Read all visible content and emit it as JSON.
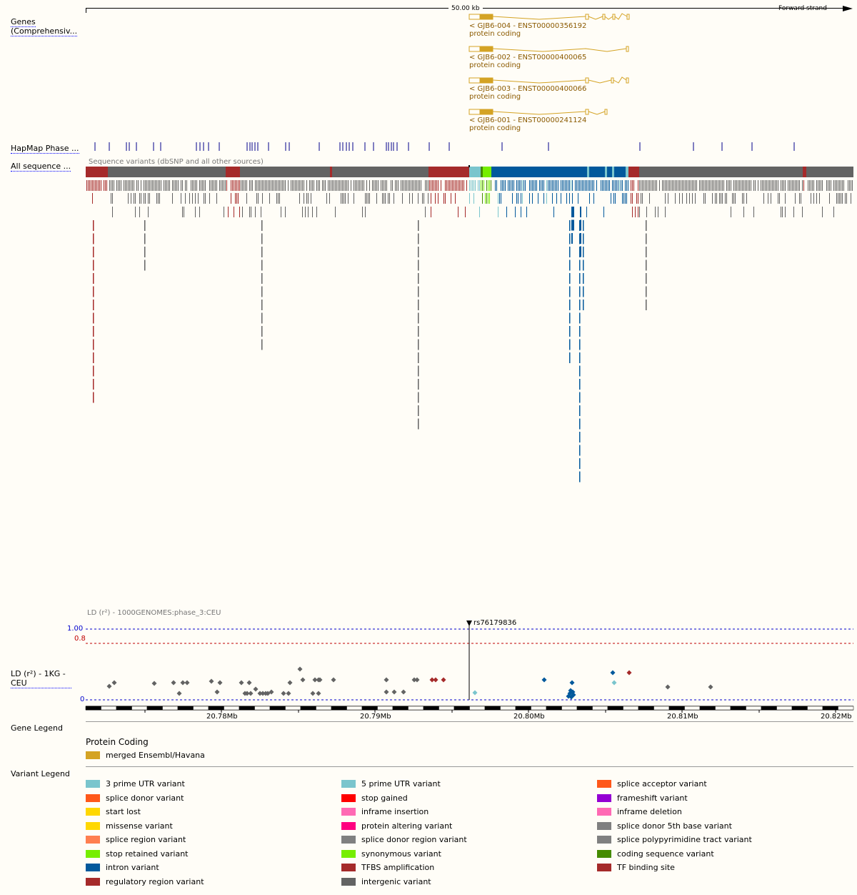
{
  "scale_bar": {
    "length_label": "50.00 kb",
    "strand_label": "Forward strand"
  },
  "tracks": {
    "genes_label": "Genes (Comprehensiv...",
    "hapmap_label": "HapMap Phase ...",
    "seqvar_label": "All sequence ...",
    "seqvar_caption": "Sequence variants (dbSNP and all other sources)",
    "ld_label": "LD (r²) - 1KG - CEU",
    "ld_caption": "LD (r²) - 1000GENOMES:phase_3:CEU"
  },
  "transcripts": [
    {
      "name": "< GJB6-004 - ENST00000356192",
      "biotype": "protein coding"
    },
    {
      "name": "< GJB6-002 - ENST00000400065",
      "biotype": "protein coding"
    },
    {
      "name": "< GJB6-003 - ENST00000400066",
      "biotype": "protein coding"
    },
    {
      "name": "< GJB6-001 - ENST00000241124",
      "biotype": "protein coding"
    }
  ],
  "ld_plot": {
    "focus_snp": "rs76179836",
    "ticks": {
      "one": "1.00",
      "threshold": "0.8",
      "zero": "0"
    }
  },
  "ruler": {
    "labels": [
      "20.78Mb",
      "20.79Mb",
      "20.80Mb",
      "20.81Mb",
      "20.82Mb"
    ]
  },
  "gene_legend": {
    "heading": "Gene Legend",
    "subheading": "Protein Coding",
    "items": [
      {
        "label": "merged Ensembl/Havana",
        "color": "#d4a324"
      }
    ]
  },
  "variant_legend": {
    "heading": "Variant Legend",
    "items": [
      {
        "label": "3 prime UTR variant",
        "color": "#7ac5cd"
      },
      {
        "label": "5 prime UTR variant",
        "color": "#7ac5cd"
      },
      {
        "label": "splice acceptor variant",
        "color": "#ff581a"
      },
      {
        "label": "splice donor variant",
        "color": "#ff581a"
      },
      {
        "label": "stop gained",
        "color": "#ff0000"
      },
      {
        "label": "frameshift variant",
        "color": "#9400d3"
      },
      {
        "label": "start lost",
        "color": "#ffd700"
      },
      {
        "label": "inframe insertion",
        "color": "#ff69b4"
      },
      {
        "label": "inframe deletion",
        "color": "#ff69b4"
      },
      {
        "label": "missense variant",
        "color": "#ffd700"
      },
      {
        "label": "protein altering variant",
        "color": "#ff0080"
      },
      {
        "label": "splice donor 5th base variant",
        "color": "#808080"
      },
      {
        "label": "splice region variant",
        "color": "#ff7f50"
      },
      {
        "label": "splice donor region variant",
        "color": "#808080"
      },
      {
        "label": "splice polypyrimidine tract variant",
        "color": "#808080"
      },
      {
        "label": "stop retained variant",
        "color": "#76ee00"
      },
      {
        "label": "synonymous variant",
        "color": "#76ee00"
      },
      {
        "label": "coding sequence variant",
        "color": "#458b00"
      },
      {
        "label": "intron variant",
        "color": "#02599c"
      },
      {
        "label": "TFBS amplification",
        "color": "#a52a2a"
      },
      {
        "label": "TF binding site",
        "color": "#a52a2a"
      },
      {
        "label": "regulatory region variant",
        "color": "#a52a2a"
      },
      {
        "label": "intergenic variant",
        "color": "#636363"
      }
    ]
  }
}
